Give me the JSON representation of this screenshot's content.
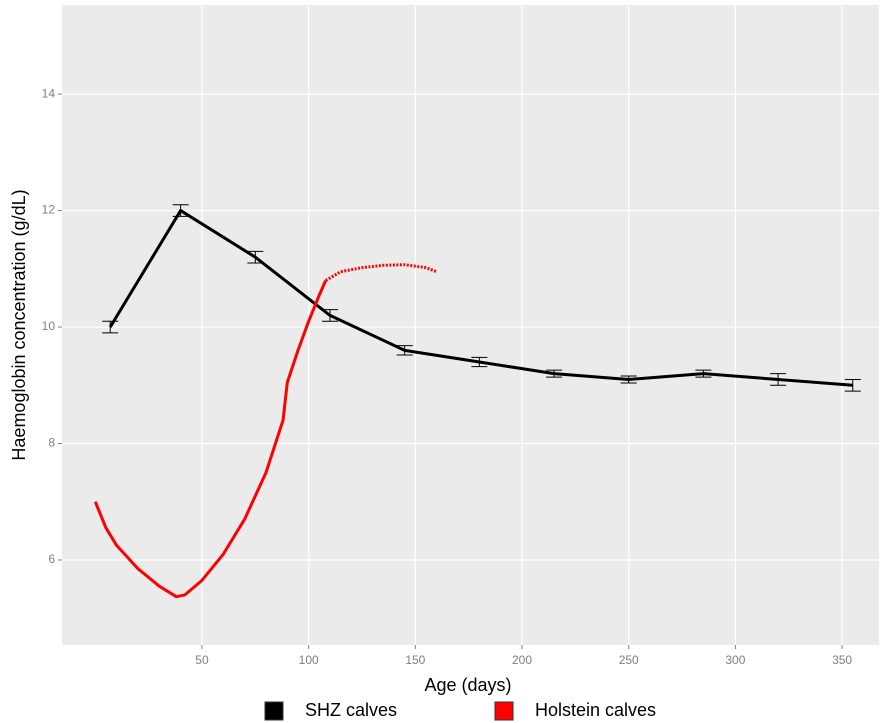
{
  "chart_data": {
    "type": "line",
    "x_label": "Age (days)",
    "y_label": "Haemoglobin concentration (g/dL)",
    "xlim": [
      -15.6,
      367.3
    ],
    "ylim": [
      4.54,
      15.53
    ],
    "xticks": [
      50,
      100,
      150,
      200,
      250,
      300,
      350
    ],
    "yticks": [
      6,
      8,
      10,
      12,
      14
    ],
    "grid": true,
    "legend_position": "bottom",
    "series": [
      {
        "name": "SHZ calves",
        "color": "#000000",
        "x": [
          7,
          40,
          75,
          110,
          145,
          180,
          215,
          250,
          285,
          320,
          355
        ],
        "values": [
          10.0,
          12.0,
          11.2,
          10.2,
          9.6,
          9.4,
          9.2,
          9.1,
          9.2,
          9.1,
          9.0
        ],
        "errors": [
          0.1,
          0.1,
          0.1,
          0.1,
          0.08,
          0.08,
          0.06,
          0.06,
          0.06,
          0.1,
          0.1
        ]
      },
      {
        "name": "Holstein calves",
        "color": "#ff0000",
        "segments": [
          {
            "style": "solid",
            "x": [
              0,
              5,
              10,
              20,
              30,
              38,
              42,
              50,
              60,
              70,
              80,
              88,
              90,
              95,
              100,
              105,
              108
            ],
            "values": [
              7.0,
              6.55,
              6.25,
              5.85,
              5.55,
              5.37,
              5.4,
              5.65,
              6.1,
              6.7,
              7.5,
              8.4,
              9.05,
              9.6,
              10.1,
              10.55,
              10.8
            ]
          },
          {
            "style": "dotted",
            "x": [
              108,
              115,
              125,
              135,
              145,
              155,
              160
            ],
            "values": [
              10.8,
              10.95,
              11.02,
              11.06,
              11.07,
              11.02,
              10.95
            ]
          }
        ]
      }
    ]
  }
}
